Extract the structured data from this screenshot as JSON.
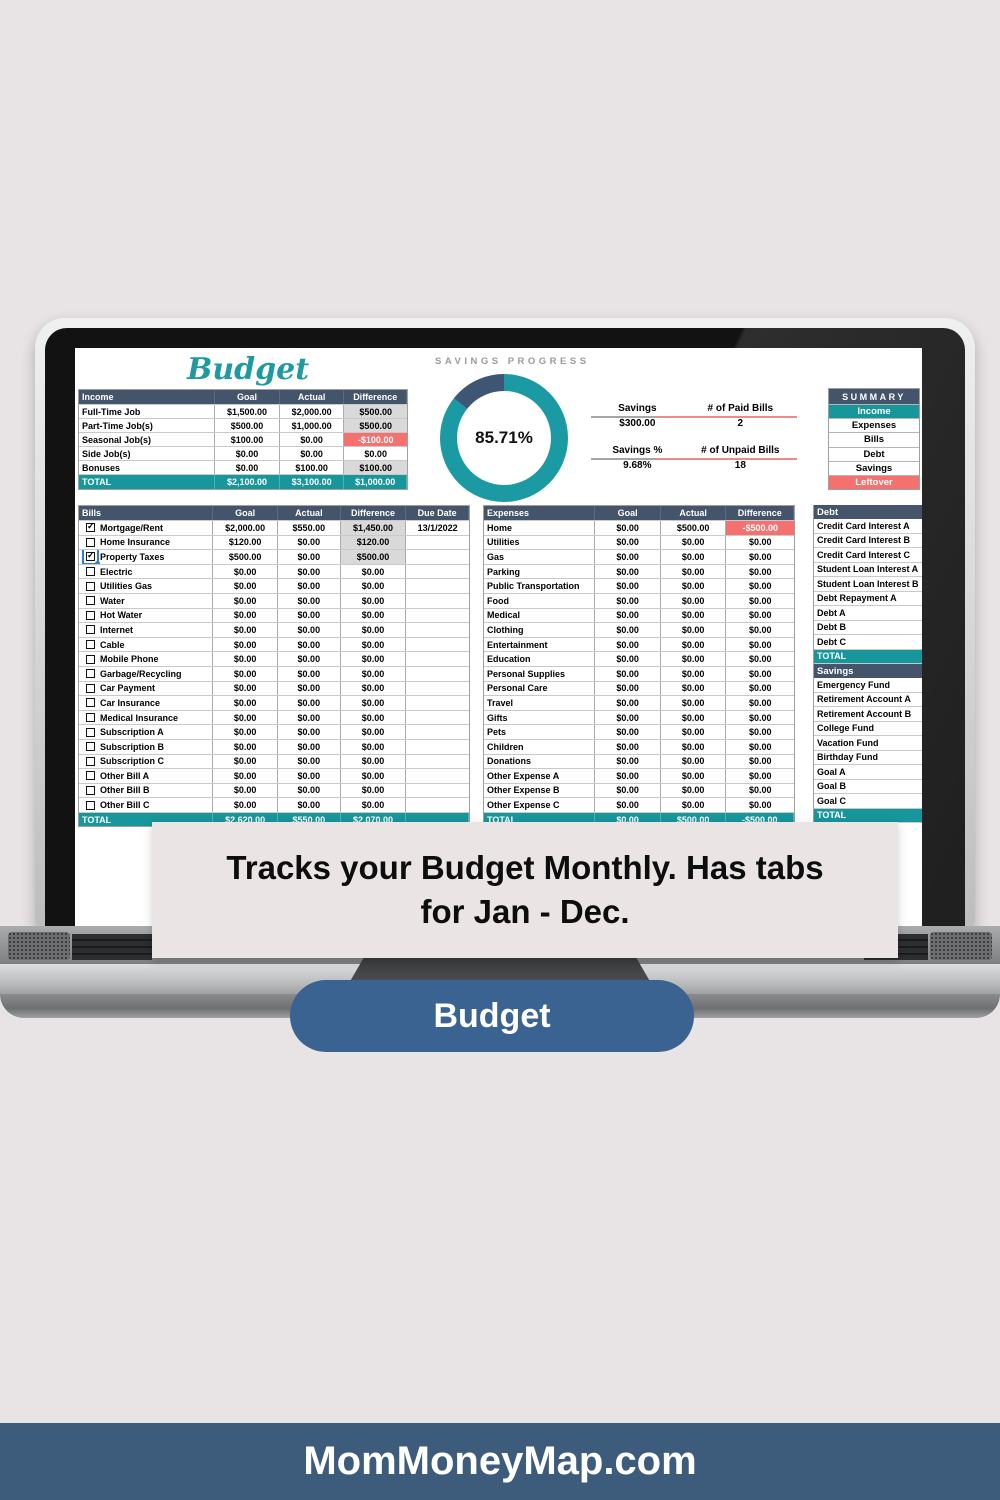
{
  "caption": {
    "line1": "Tracks your Budget Monthly. Has tabs",
    "line2": "for Jan - Dec."
  },
  "button": {
    "label": "Budget"
  },
  "footer": {
    "text": "MomMoneyMap.com"
  },
  "colors": {
    "navy": "#44546a",
    "teal": "#17969c",
    "red": "#f4716f",
    "gray_cell": "#d9d9d9",
    "donut_teal": "#1b9aa3",
    "donut_navy": "#3e5674",
    "button": "#3a6391",
    "footer": "#3d5c7b"
  },
  "sheet": {
    "title": "Budget",
    "savings_progress": {
      "title": "SAVINGS PROGRESS",
      "percent": 85.71,
      "percent_label": "85.71%"
    },
    "stats": [
      {
        "label1": "Savings",
        "value1": "$300.00",
        "label2": "# of Paid Bills",
        "value2": "2"
      },
      {
        "label1": "Savings %",
        "value1": "9.68%",
        "label2": "# of Unpaid Bills",
        "value2": "18"
      }
    ],
    "summary": {
      "title": "SUMMARY",
      "items": [
        "Income",
        "Expenses",
        "Bills",
        "Debt",
        "Savings",
        "Leftover"
      ]
    },
    "income": {
      "header": [
        "Income",
        "Goal",
        "Actual",
        "Difference"
      ],
      "rows": [
        {
          "label": "Full-Time Job",
          "goal": "$1,500.00",
          "actual": "$2,000.00",
          "diff": "$500.00",
          "diff_style": "gray"
        },
        {
          "label": "Part-Time Job(s)",
          "goal": "$500.00",
          "actual": "$1,000.00",
          "diff": "$500.00",
          "diff_style": "gray"
        },
        {
          "label": "Seasonal Job(s)",
          "goal": "$100.00",
          "actual": "$0.00",
          "diff": "-$100.00",
          "diff_style": "red"
        },
        {
          "label": "Side Job(s)",
          "goal": "$0.00",
          "actual": "$0.00",
          "diff": "$0.00",
          "diff_style": "plain"
        },
        {
          "label": "Bonuses",
          "goal": "$0.00",
          "actual": "$100.00",
          "diff": "$100.00",
          "diff_style": "gray"
        }
      ],
      "total": {
        "label": "TOTAL",
        "goal": "$2,100.00",
        "actual": "$3,100.00",
        "diff": "$1,000.00"
      }
    },
    "bills": {
      "header": [
        "Bills",
        "Goal",
        "Actual",
        "Difference",
        "Due Date"
      ],
      "rows": [
        {
          "label": "Mortgage/Rent",
          "checked": true,
          "selected": false,
          "goal": "$2,000.00",
          "actual": "$550.00",
          "diff": "$1,450.00",
          "diff_style": "gray",
          "due": "13/1/2022"
        },
        {
          "label": "Home Insurance",
          "checked": false,
          "selected": false,
          "goal": "$120.00",
          "actual": "$0.00",
          "diff": "$120.00",
          "diff_style": "gray",
          "due": ""
        },
        {
          "label": "Property Taxes",
          "checked": true,
          "selected": true,
          "goal": "$500.00",
          "actual": "$0.00",
          "diff": "$500.00",
          "diff_style": "gray",
          "due": ""
        },
        {
          "label": "Electric",
          "checked": false,
          "selected": false,
          "goal": "$0.00",
          "actual": "$0.00",
          "diff": "$0.00",
          "diff_style": "plain",
          "due": ""
        },
        {
          "label": "Utilities Gas",
          "checked": false,
          "selected": false,
          "goal": "$0.00",
          "actual": "$0.00",
          "diff": "$0.00",
          "diff_style": "plain",
          "due": ""
        },
        {
          "label": "Water",
          "checked": false,
          "selected": false,
          "goal": "$0.00",
          "actual": "$0.00",
          "diff": "$0.00",
          "diff_style": "plain",
          "due": ""
        },
        {
          "label": "Hot Water",
          "checked": false,
          "selected": false,
          "goal": "$0.00",
          "actual": "$0.00",
          "diff": "$0.00",
          "diff_style": "plain",
          "due": ""
        },
        {
          "label": "Internet",
          "checked": false,
          "selected": false,
          "goal": "$0.00",
          "actual": "$0.00",
          "diff": "$0.00",
          "diff_style": "plain",
          "due": ""
        },
        {
          "label": "Cable",
          "checked": false,
          "selected": false,
          "goal": "$0.00",
          "actual": "$0.00",
          "diff": "$0.00",
          "diff_style": "plain",
          "due": ""
        },
        {
          "label": "Mobile Phone",
          "checked": false,
          "selected": false,
          "goal": "$0.00",
          "actual": "$0.00",
          "diff": "$0.00",
          "diff_style": "plain",
          "due": ""
        },
        {
          "label": "Garbage/Recycling",
          "checked": false,
          "selected": false,
          "goal": "$0.00",
          "actual": "$0.00",
          "diff": "$0.00",
          "diff_style": "plain",
          "due": ""
        },
        {
          "label": "Car Payment",
          "checked": false,
          "selected": false,
          "goal": "$0.00",
          "actual": "$0.00",
          "diff": "$0.00",
          "diff_style": "plain",
          "due": ""
        },
        {
          "label": "Car Insurance",
          "checked": false,
          "selected": false,
          "goal": "$0.00",
          "actual": "$0.00",
          "diff": "$0.00",
          "diff_style": "plain",
          "due": ""
        },
        {
          "label": "Medical Insurance",
          "checked": false,
          "selected": false,
          "goal": "$0.00",
          "actual": "$0.00",
          "diff": "$0.00",
          "diff_style": "plain",
          "due": ""
        },
        {
          "label": "Subscription A",
          "checked": false,
          "selected": false,
          "goal": "$0.00",
          "actual": "$0.00",
          "diff": "$0.00",
          "diff_style": "plain",
          "due": ""
        },
        {
          "label": "Subscription B",
          "checked": false,
          "selected": false,
          "goal": "$0.00",
          "actual": "$0.00",
          "diff": "$0.00",
          "diff_style": "plain",
          "due": ""
        },
        {
          "label": "Subscription C",
          "checked": false,
          "selected": false,
          "goal": "$0.00",
          "actual": "$0.00",
          "diff": "$0.00",
          "diff_style": "plain",
          "due": ""
        },
        {
          "label": "Other Bill A",
          "checked": false,
          "selected": false,
          "goal": "$0.00",
          "actual": "$0.00",
          "diff": "$0.00",
          "diff_style": "plain",
          "due": ""
        },
        {
          "label": "Other Bill B",
          "checked": false,
          "selected": false,
          "goal": "$0.00",
          "actual": "$0.00",
          "diff": "$0.00",
          "diff_style": "plain",
          "due": ""
        },
        {
          "label": "Other Bill C",
          "checked": false,
          "selected": false,
          "goal": "$0.00",
          "actual": "$0.00",
          "diff": "$0.00",
          "diff_style": "plain",
          "due": ""
        }
      ],
      "total": {
        "label": "TOTAL",
        "goal": "$2,620.00",
        "actual": "$550.00",
        "diff": "$2,070.00",
        "due": ""
      }
    },
    "expenses": {
      "header": [
        "Expenses",
        "Goal",
        "Actual",
        "Difference"
      ],
      "rows": [
        {
          "label": "Home",
          "goal": "$0.00",
          "actual": "$500.00",
          "diff": "-$500.00",
          "diff_style": "red"
        },
        {
          "label": "Utilities",
          "goal": "$0.00",
          "actual": "$0.00",
          "diff": "$0.00",
          "diff_style": "plain"
        },
        {
          "label": "Gas",
          "goal": "$0.00",
          "actual": "$0.00",
          "diff": "$0.00",
          "diff_style": "plain"
        },
        {
          "label": "Parking",
          "goal": "$0.00",
          "actual": "$0.00",
          "diff": "$0.00",
          "diff_style": "plain"
        },
        {
          "label": "Public Transportation",
          "goal": "$0.00",
          "actual": "$0.00",
          "diff": "$0.00",
          "diff_style": "plain"
        },
        {
          "label": "Food",
          "goal": "$0.00",
          "actual": "$0.00",
          "diff": "$0.00",
          "diff_style": "plain"
        },
        {
          "label": "Medical",
          "goal": "$0.00",
          "actual": "$0.00",
          "diff": "$0.00",
          "diff_style": "plain"
        },
        {
          "label": "Clothing",
          "goal": "$0.00",
          "actual": "$0.00",
          "diff": "$0.00",
          "diff_style": "plain"
        },
        {
          "label": "Entertainment",
          "goal": "$0.00",
          "actual": "$0.00",
          "diff": "$0.00",
          "diff_style": "plain"
        },
        {
          "label": "Education",
          "goal": "$0.00",
          "actual": "$0.00",
          "diff": "$0.00",
          "diff_style": "plain"
        },
        {
          "label": "Personal Supplies",
          "goal": "$0.00",
          "actual": "$0.00",
          "diff": "$0.00",
          "diff_style": "plain"
        },
        {
          "label": "Personal Care",
          "goal": "$0.00",
          "actual": "$0.00",
          "diff": "$0.00",
          "diff_style": "plain"
        },
        {
          "label": "Travel",
          "goal": "$0.00",
          "actual": "$0.00",
          "diff": "$0.00",
          "diff_style": "plain"
        },
        {
          "label": "Gifts",
          "goal": "$0.00",
          "actual": "$0.00",
          "diff": "$0.00",
          "diff_style": "plain"
        },
        {
          "label": "Pets",
          "goal": "$0.00",
          "actual": "$0.00",
          "diff": "$0.00",
          "diff_style": "plain"
        },
        {
          "label": "Children",
          "goal": "$0.00",
          "actual": "$0.00",
          "diff": "$0.00",
          "diff_style": "plain"
        },
        {
          "label": "Donations",
          "goal": "$0.00",
          "actual": "$0.00",
          "diff": "$0.00",
          "diff_style": "plain"
        },
        {
          "label": "Other Expense A",
          "goal": "$0.00",
          "actual": "$0.00",
          "diff": "$0.00",
          "diff_style": "plain"
        },
        {
          "label": "Other Expense B",
          "goal": "$0.00",
          "actual": "$0.00",
          "diff": "$0.00",
          "diff_style": "plain"
        },
        {
          "label": "Other Expense C",
          "goal": "$0.00",
          "actual": "$0.00",
          "diff": "$0.00",
          "diff_style": "plain"
        }
      ],
      "total": {
        "label": "TOTAL",
        "goal": "$0.00",
        "actual": "$500.00",
        "diff": "-$500.00"
      }
    },
    "debt": {
      "title": "Debt",
      "items": [
        "Credit Card Interest A",
        "Credit Card Interest B",
        "Credit Card Interest C",
        "Student Loan Interest A",
        "Student Loan Interest B",
        "Debt Repayment A",
        "Debt A",
        "Debt B",
        "Debt C"
      ],
      "total_label": "TOTAL"
    },
    "savings_section": {
      "title": "Savings",
      "items": [
        "Emergency Fund",
        "Retirement Account A",
        "Retirement Account B",
        "College Fund",
        "Vacation Fund",
        "Birthday Fund",
        "Goal A",
        "Goal B",
        "Goal C"
      ],
      "total_label": "TOTAL"
    }
  }
}
